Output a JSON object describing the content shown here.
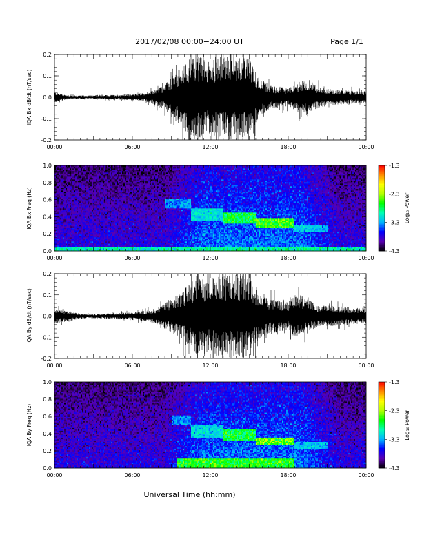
{
  "header": {
    "title": "2017/02/08  00:00−24:00 UT",
    "page": "Page 1/1"
  },
  "xaxis": {
    "label": "Universal Time (hh:mm)",
    "range_hours": [
      0,
      24
    ],
    "ticks": [
      "00:00",
      "06:00",
      "12:00",
      "18:00",
      "00:00"
    ]
  },
  "colorbar": {
    "label": "Log₁₀ Power",
    "range": [
      -4.3,
      -1.3
    ],
    "ticks": [
      "-1.3",
      "-2.3",
      "-3.3",
      "-4.3"
    ],
    "colors": [
      "#000000",
      "#5a00b4",
      "#0000ff",
      "#00b4ff",
      "#00ffb4",
      "#00ff00",
      "#b4ff00",
      "#ffff00",
      "#ff8c00",
      "#ff0000"
    ]
  },
  "chart_data": [
    {
      "type": "line",
      "name": "bx-waveform",
      "ylabel": "IQA Bx dB/dt (nT/sec)",
      "ylim": [
        -0.2,
        0.2
      ],
      "yticks": [
        "0.2",
        "0.1",
        "0.0",
        "-0.1",
        "-0.2"
      ],
      "envelope": {
        "x_hours": [
          0,
          1,
          2,
          3,
          4,
          5,
          6,
          7,
          7.5,
          8,
          8.5,
          9,
          9.5,
          10,
          10.5,
          11,
          11.5,
          12,
          12.5,
          13,
          13.5,
          14,
          14.5,
          15,
          15.5,
          16,
          16.5,
          17,
          17.5,
          18,
          18.5,
          19,
          19.5,
          20,
          20.5,
          21,
          22,
          23,
          24
        ],
        "amplitude": [
          0.025,
          0.01,
          0.008,
          0.008,
          0.01,
          0.012,
          0.015,
          0.02,
          0.03,
          0.045,
          0.06,
          0.09,
          0.12,
          0.15,
          0.2,
          0.2,
          0.18,
          0.17,
          0.2,
          0.2,
          0.2,
          0.2,
          0.2,
          0.18,
          0.12,
          0.08,
          0.06,
          0.05,
          0.05,
          0.04,
          0.06,
          0.08,
          0.07,
          0.06,
          0.05,
          0.04,
          0.035,
          0.03,
          0.025
        ]
      }
    },
    {
      "type": "heatmap",
      "name": "bx-spectrogram",
      "ylabel": "IQA Bx Freq (Hz)",
      "ylim": [
        0,
        1.0
      ],
      "yticks": [
        "1.0",
        "0.8",
        "0.6",
        "0.4",
        "0.2",
        "0.0"
      ],
      "zlim": [
        -4.3,
        -1.3
      ],
      "features": [
        {
          "t_hours": [
            8.5,
            10.5
          ],
          "freq_hz": [
            0.5,
            0.62
          ],
          "log_power": -3.2
        },
        {
          "t_hours": [
            10.5,
            13.0
          ],
          "freq_hz": [
            0.35,
            0.5
          ],
          "log_power": -3.0
        },
        {
          "t_hours": [
            13.0,
            15.5
          ],
          "freq_hz": [
            0.33,
            0.45
          ],
          "log_power": -2.5
        },
        {
          "t_hours": [
            15.5,
            18.5
          ],
          "freq_hz": [
            0.28,
            0.38
          ],
          "log_power": -2.3
        },
        {
          "t_hours": [
            18.5,
            21.0
          ],
          "freq_hz": [
            0.22,
            0.3
          ],
          "log_power": -3.1
        },
        {
          "t_hours": [
            0,
            24
          ],
          "freq_hz": [
            0,
            0.05
          ],
          "log_power": -2.8
        }
      ]
    },
    {
      "type": "line",
      "name": "by-waveform",
      "ylabel": "IQA By dB/dt (nT/sec)",
      "ylim": [
        -0.2,
        0.2
      ],
      "yticks": [
        "0.2",
        "0.1",
        "0.0",
        "-0.1",
        "-0.2"
      ],
      "envelope": {
        "x_hours": [
          0,
          1,
          2,
          3,
          4,
          5,
          6,
          7,
          7.5,
          8,
          8.5,
          9,
          9.5,
          10,
          10.5,
          11,
          11.5,
          12,
          12.5,
          13,
          13.5,
          14,
          14.5,
          15,
          15.5,
          16,
          16.5,
          17,
          17.5,
          18,
          18.5,
          19,
          19.5,
          20,
          20.5,
          21,
          22,
          23,
          24
        ],
        "amplitude": [
          0.035,
          0.025,
          0.012,
          0.01,
          0.012,
          0.015,
          0.018,
          0.025,
          0.03,
          0.045,
          0.06,
          0.08,
          0.1,
          0.13,
          0.16,
          0.2,
          0.18,
          0.17,
          0.2,
          0.2,
          0.2,
          0.2,
          0.2,
          0.2,
          0.14,
          0.1,
          0.08,
          0.08,
          0.07,
          0.07,
          0.1,
          0.1,
          0.08,
          0.06,
          0.05,
          0.05,
          0.045,
          0.04,
          0.035
        ]
      }
    },
    {
      "type": "heatmap",
      "name": "by-spectrogram",
      "ylabel": "IQA By Freq (Hz)",
      "ylim": [
        0,
        1.0
      ],
      "yticks": [
        "1.0",
        "0.8",
        "0.6",
        "0.4",
        "0.2",
        "0.0"
      ],
      "zlim": [
        -4.3,
        -1.3
      ],
      "features": [
        {
          "t_hours": [
            9.0,
            10.5
          ],
          "freq_hz": [
            0.5,
            0.62
          ],
          "log_power": -3.2
        },
        {
          "t_hours": [
            10.5,
            13.0
          ],
          "freq_hz": [
            0.35,
            0.5
          ],
          "log_power": -3.0
        },
        {
          "t_hours": [
            13.0,
            15.5
          ],
          "freq_hz": [
            0.33,
            0.45
          ],
          "log_power": -2.5
        },
        {
          "t_hours": [
            15.5,
            18.5
          ],
          "freq_hz": [
            0.28,
            0.36
          ],
          "log_power": -2.2
        },
        {
          "t_hours": [
            18.5,
            21.0
          ],
          "freq_hz": [
            0.22,
            0.3
          ],
          "log_power": -3.1
        },
        {
          "t_hours": [
            9.5,
            18.5
          ],
          "freq_hz": [
            0,
            0.12
          ],
          "log_power": -2.4
        }
      ]
    }
  ]
}
